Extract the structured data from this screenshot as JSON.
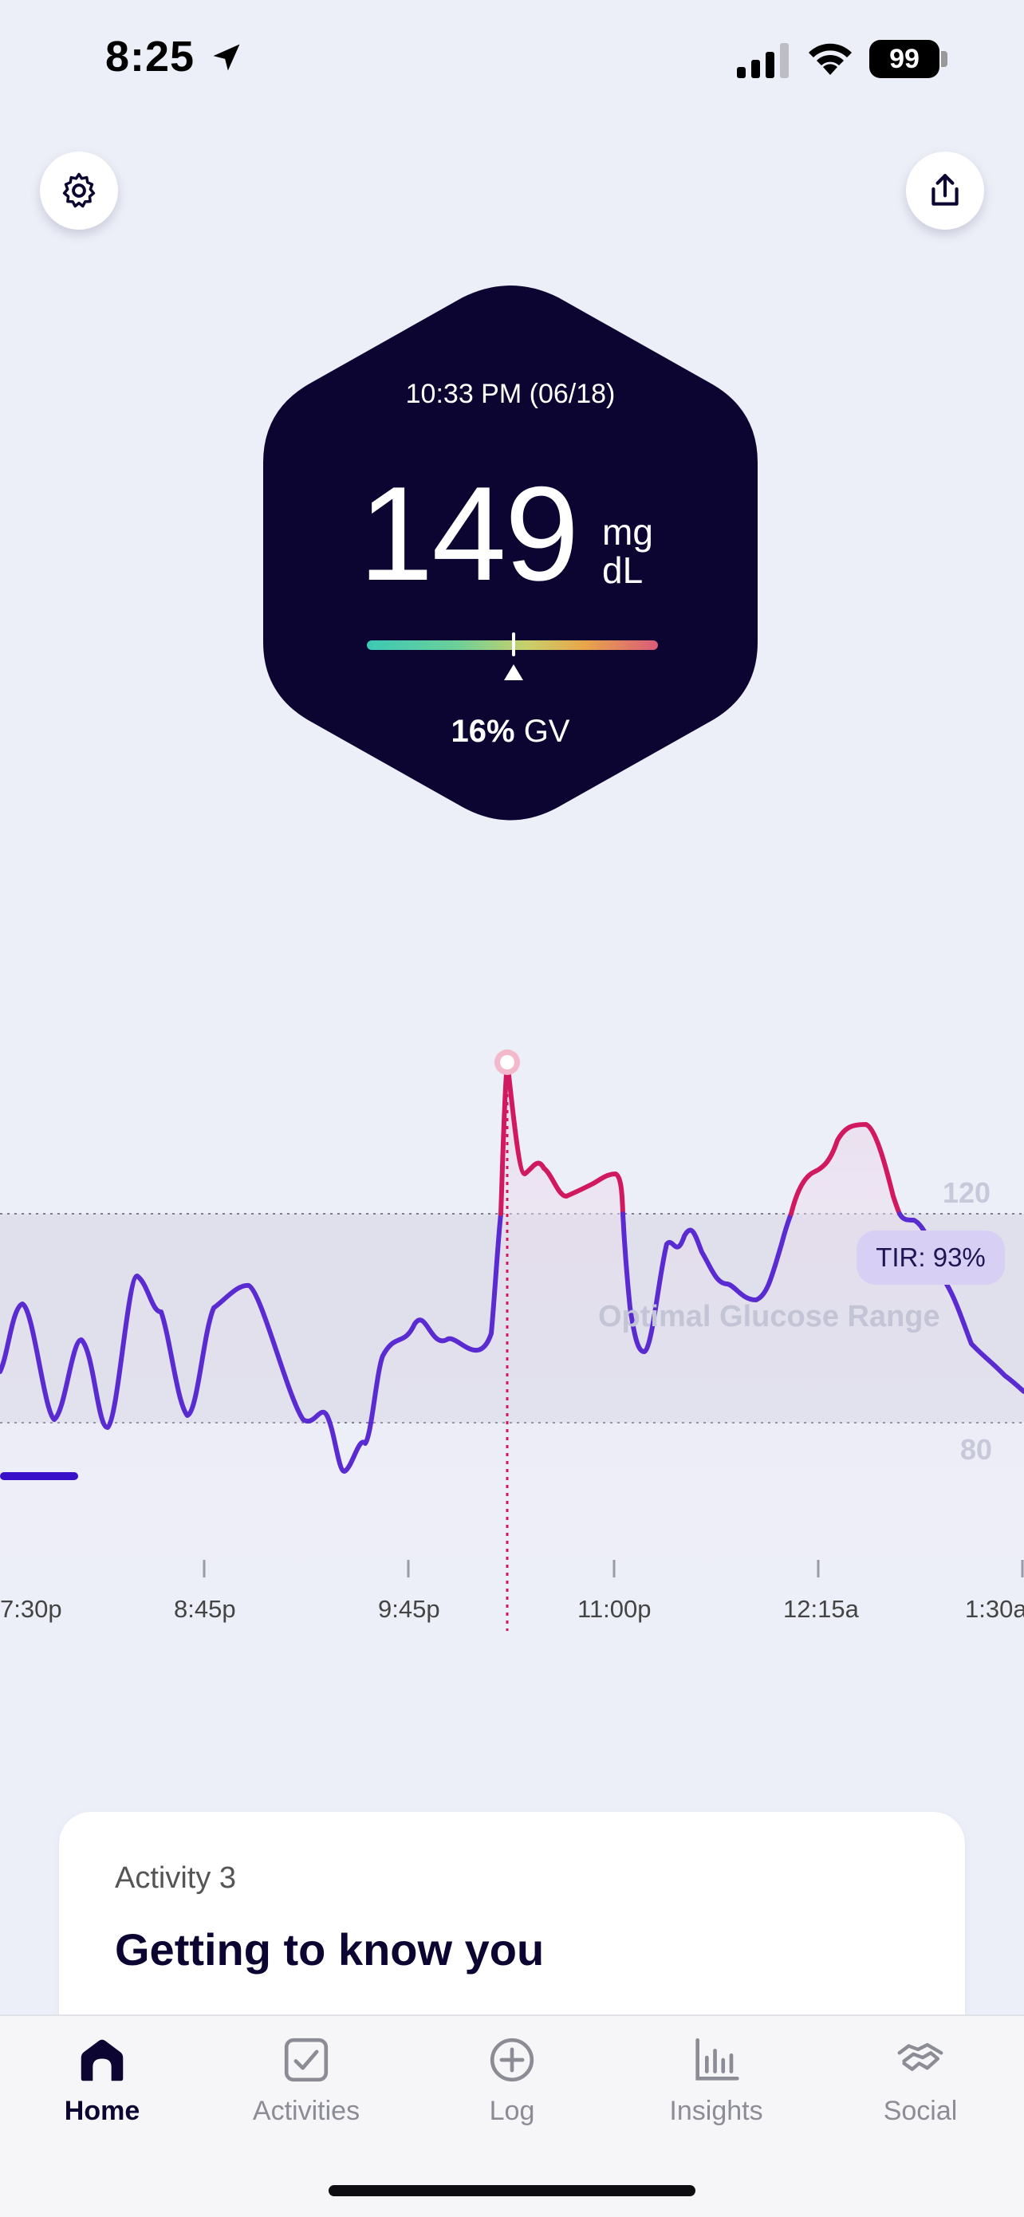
{
  "status_bar": {
    "time": "8:25",
    "battery": "99"
  },
  "reading": {
    "timestamp": "10:33 PM (06/18)",
    "value": "149",
    "unit_top": "mg",
    "unit_bottom": "dL",
    "gv_value": "16%",
    "gv_label": "GV"
  },
  "chart": {
    "upper_label": "120",
    "lower_label": "80",
    "range_caption": "Optimal Glucose Range",
    "tir": "TIR: 93%",
    "x_ticks": [
      "7:30p",
      "8:45p",
      "9:45p",
      "11:00p",
      "12:15a",
      "1:30a"
    ],
    "accent": "#5A2BD0",
    "high_color": "#D0195F"
  },
  "card": {
    "subtitle": "Activity 3",
    "title": "Getting to know you"
  },
  "tabs": [
    {
      "label": "Home",
      "icon": "home-icon",
      "active": true
    },
    {
      "label": "Activities",
      "icon": "checkbox-icon",
      "active": false
    },
    {
      "label": "Log",
      "icon": "plus-circle-icon",
      "active": false
    },
    {
      "label": "Insights",
      "icon": "bar-chart-icon",
      "active": false
    },
    {
      "label": "Social",
      "icon": "handshake-icon",
      "active": false
    }
  ]
}
